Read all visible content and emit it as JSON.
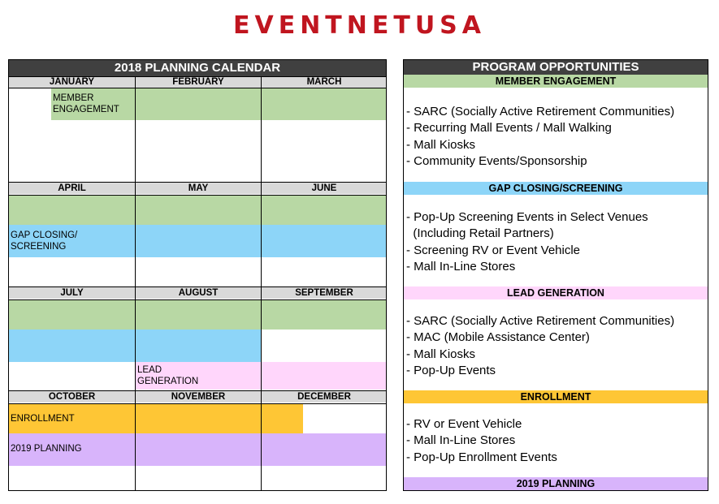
{
  "brand": "EVENTNETUSA",
  "calendar": {
    "title": "2018 PLANNING CALENDAR",
    "months": [
      "JANUARY",
      "FEBRUARY",
      "MARCH",
      "APRIL",
      "MAY",
      "JUNE",
      "JULY",
      "AUGUST",
      "SEPTEMBER",
      "OCTOBER",
      "NOVEMBER",
      "DECEMBER"
    ],
    "labels": {
      "member_engagement": "MEMBER ENGAGEMENT",
      "gap_closing": "GAP CLOSING/ SCREENING",
      "lead_generation": "LEAD GENERATION",
      "enrollment": "ENROLLMENT",
      "planning_2019": "2019 PLANNING"
    }
  },
  "programs": {
    "title": "PROGRAM OPPORTUNITIES",
    "sections": [
      {
        "heading": "MEMBER ENGAGEMENT",
        "color": "#b8d8a4",
        "items": [
          "- SARC (Socially Active Retirement Communities)",
          "- Recurring Mall Events / Mall Walking",
          "- Mall Kiosks",
          "- Community Events/Sponsorship"
        ]
      },
      {
        "heading": "GAP CLOSING/SCREENING",
        "color": "#8dd5f8",
        "items": [
          "- Pop-Up Screening Events in Select Venues",
          "  (Including Retail Partners)",
          "- Screening RV or Event Vehicle",
          "- Mall In-Line Stores"
        ]
      },
      {
        "heading": "LEAD GENERATION",
        "color": "#ffd6fb",
        "items": [
          "- SARC (Socially Active Retirement Communities)",
          "- MAC (Mobile Assistance Center)",
          "- Mall Kiosks",
          "- Pop-Up Events"
        ]
      },
      {
        "heading": "ENROLLMENT",
        "color": "#fec635",
        "items": [
          "- RV or Event Vehicle",
          "- Mall In-Line Stores",
          "- Pop-Up Enrollment Events"
        ]
      },
      {
        "heading": "2019 PLANNING",
        "color": "#d8b4fb",
        "items": []
      }
    ]
  }
}
